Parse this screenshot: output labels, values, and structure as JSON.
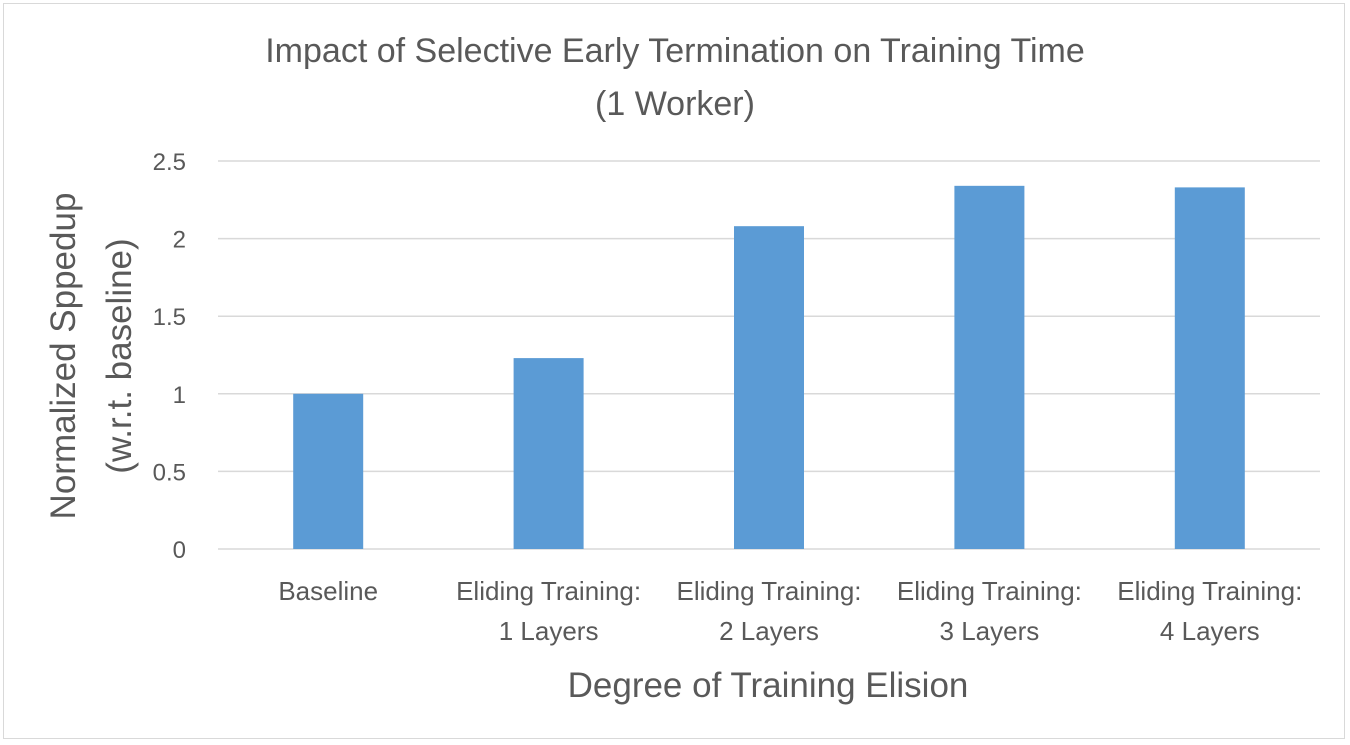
{
  "chart_data": {
    "type": "bar",
    "title": [
      "Impact of Selective Early Termination on Training Time",
      "(1 Worker)"
    ],
    "categories": [
      [
        "Baseline"
      ],
      [
        "Eliding Training:",
        "1 Layers"
      ],
      [
        "Eliding Training:",
        "2 Layers"
      ],
      [
        "Eliding Training:",
        "3 Layers"
      ],
      [
        "Eliding Training:",
        "4 Layers"
      ]
    ],
    "values": [
      1.0,
      1.23,
      2.08,
      2.34,
      2.33
    ],
    "xlabel": "Degree of Training Elision",
    "ylabel": [
      "Normalized Sppedup",
      "(w.r.t. baseline)"
    ],
    "ylim": [
      0,
      2.5
    ],
    "yticks": [
      "0",
      "0.5",
      "1",
      "1.5",
      "2",
      "2.5"
    ],
    "ytick_values": [
      0,
      0.5,
      1,
      1.5,
      2,
      2.5
    ],
    "bar_color": "#5b9bd5",
    "grid_color": "#d9d9d9",
    "text_color": "#595959",
    "grid": true,
    "legend": "none"
  }
}
